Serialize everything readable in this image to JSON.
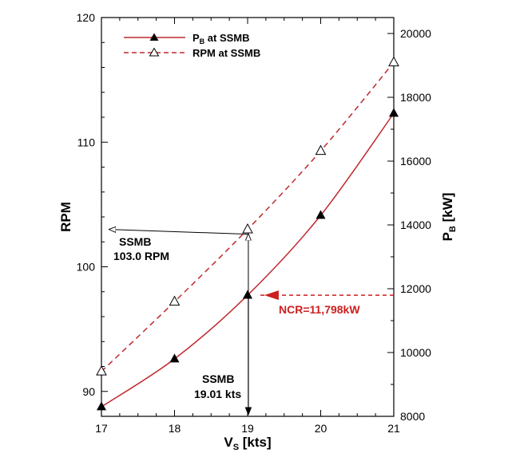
{
  "chart_data": {
    "type": "line",
    "x": [
      17,
      18,
      19,
      20,
      21
    ],
    "xlabel_main": "V",
    "xlabel_sub": "S",
    "xlabel_unit": " [kts]",
    "xlim": [
      17,
      21
    ],
    "xticks": [
      "17",
      "18",
      "19",
      "20",
      "21"
    ],
    "ylabel_left": "RPM",
    "ylim_left": [
      88,
      120
    ],
    "yticks_left": [
      "90",
      "100",
      "110",
      "120"
    ],
    "ylabel_right_main": "P",
    "ylabel_right_sub": "B",
    "ylabel_right_unit": " [kW]",
    "ylim_right": [
      8000,
      20500
    ],
    "yticks_right": [
      "8000",
      "10000",
      "12000",
      "14000",
      "16000",
      "18000",
      "20000"
    ],
    "grid": false,
    "legend_position": "top-left",
    "series": [
      {
        "name_main": "P",
        "name_sub": "B",
        "name_rest": " at SSMB",
        "axis": "right",
        "values": [
          8300,
          9800,
          11798,
          14300,
          17500
        ],
        "line_style": "solid",
        "marker": "filled-triangle",
        "color": "#c0282d"
      },
      {
        "name": "RPM at SSMB",
        "axis": "left",
        "values": [
          91.6,
          97.2,
          103.0,
          109.3,
          116.4
        ],
        "line_style": "dashed",
        "marker": "open-triangle",
        "color": "#c0282d"
      }
    ],
    "annotations": {
      "rpm_line1": "SSMB",
      "rpm_line2": "103.0 RPM",
      "rpm_value": 103.0,
      "speed_line1": "SSMB",
      "speed_line2": "19.01 kts",
      "speed_value": 19.01,
      "ncr_label": "NCR=11,798kW",
      "ncr_value": 11798,
      "ncr_color": "#cc1f1f"
    }
  }
}
